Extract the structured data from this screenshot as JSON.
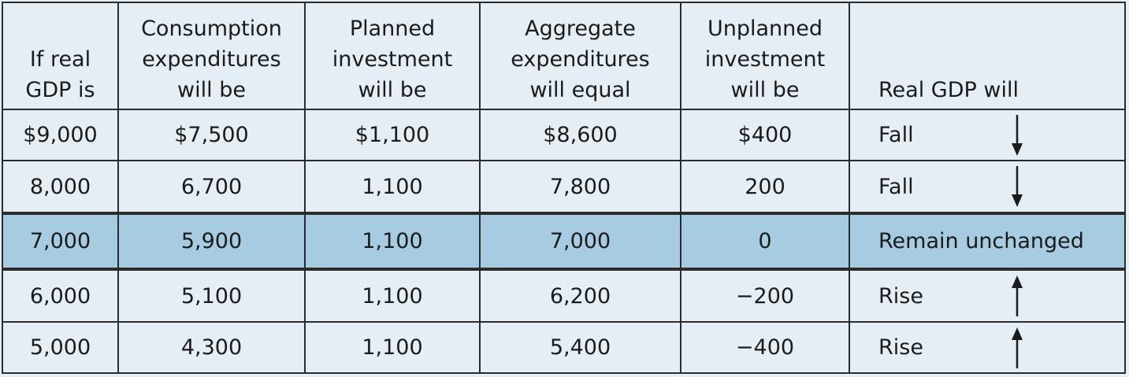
{
  "chart_data": {
    "type": "table",
    "columns": [
      [
        "If real",
        "GDP is"
      ],
      [
        "Consumption",
        "expenditures",
        "will be"
      ],
      [
        "Planned",
        "investment",
        "will be"
      ],
      [
        "Aggregate",
        "expenditures",
        "will equal"
      ],
      [
        "Unplanned",
        "investment",
        "will be"
      ],
      [
        "Real GDP will"
      ]
    ],
    "rows": [
      {
        "gdp": "$9,000",
        "consumption": "$7,500",
        "planned": "$1,100",
        "aggregate": "$8,600",
        "unplanned": "$400",
        "will": "Fall",
        "arrow": "down"
      },
      {
        "gdp": "8,000",
        "consumption": "6,700",
        "planned": "1,100",
        "aggregate": "7,800",
        "unplanned": "200",
        "will": "Fall",
        "arrow": "down"
      },
      {
        "gdp": "7,000",
        "consumption": "5,900",
        "planned": "1,100",
        "aggregate": "7,000",
        "unplanned": "0",
        "will": "Remain unchanged",
        "arrow": "none"
      },
      {
        "gdp": "6,000",
        "consumption": "5,100",
        "planned": "1,100",
        "aggregate": "6,200",
        "unplanned": "−200",
        "will": "Rise",
        "arrow": "up"
      },
      {
        "gdp": "5,000",
        "consumption": "4,300",
        "planned": "1,100",
        "aggregate": "5,400",
        "unplanned": "−400",
        "will": "Rise",
        "arrow": "up"
      }
    ],
    "highlight_row": 2,
    "colors": {
      "background": "#e6eef5",
      "highlight": "#a7cbe1",
      "border": "#2b2b2b"
    }
  }
}
